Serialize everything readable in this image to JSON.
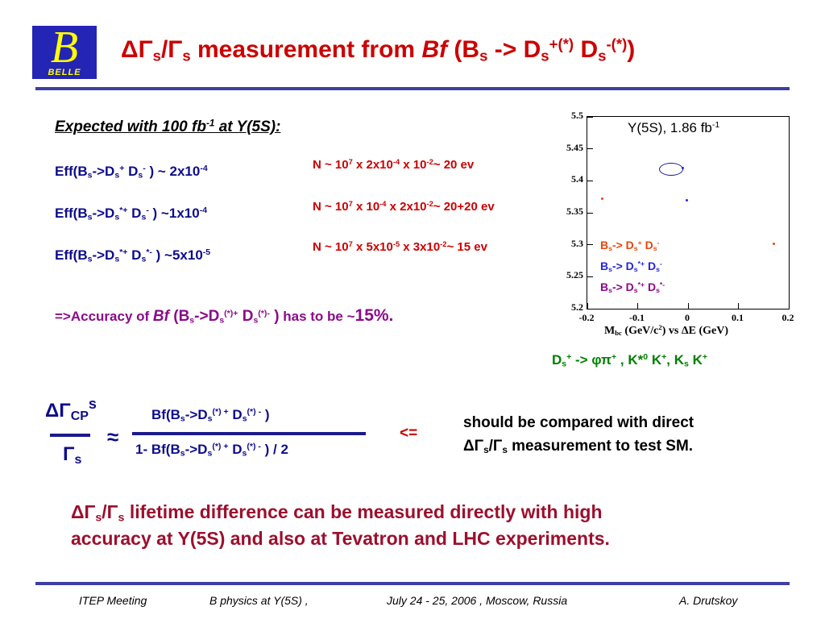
{
  "logo": {
    "text": "BELLE",
    "glyph": "B"
  },
  "title": {
    "a": "ΔΓ",
    "a_sub": "s",
    "slash": "/Γ",
    "b_sub": "s",
    "main": " measurement from ",
    "bf": "Bf",
    "open": " (B",
    "bs": "s",
    "arrow": " -> D",
    "ds1": "s",
    "ds1_sup": "+(*)",
    "d2": " D",
    "ds2": "s",
    "ds2_sup": "-(*)",
    "close": ")"
  },
  "expected": {
    "pre": "Expected with 100 fb",
    "sup": "-1",
    "post": " at Y(5S):"
  },
  "eff": [
    {
      "a": "Eff(B",
      "b": "s",
      "c": "->D",
      "d": "s",
      "e": "+",
      "f": " D",
      "g": "s",
      "h": "-",
      "i": " ) ~ 2x10",
      "j": "-4"
    },
    {
      "a": "Eff(B",
      "b": "s",
      "c": "->D",
      "d": "s",
      "e": "*+",
      "f": " D",
      "g": "s",
      "h": "-",
      "i": " ) ~1x10",
      "j": "-4"
    },
    {
      "a": "Eff(B",
      "b": "s",
      "c": "->D",
      "d": "s",
      "e": "*+",
      "f": " D",
      "g": "s",
      "h": "*-",
      "i": " ) ~5x10",
      "j": "-5"
    }
  ],
  "nlines": [
    {
      "a": "N ~ 10",
      "b": "7",
      "c": " x 2x10",
      "d": "-4",
      "e": " x 10",
      "f": "-2",
      "g": "~ 20 ev"
    },
    {
      "a": "N ~ 10",
      "b": "7",
      "c": " x 10",
      "d": "-4",
      "e": " x 2x10",
      "f": "-2",
      "g": "~ 20+20 ev"
    },
    {
      "a": "N ~ 10",
      "b": "7",
      "c": " x 5x10",
      "d": "-5",
      "e": " x 3x10",
      "f": "-2",
      "g": "~ 15 ev"
    }
  ],
  "accuracy": {
    "a": "=>Accuracy of ",
    "bf": "Bf",
    "b": " (B",
    "bs": "s",
    "c": "->D",
    "ds": "s",
    "dsup": "(*)+",
    "d": " D",
    "ds2": "s",
    "dsup2": "(*)-",
    "e": " )",
    "f": "  has to be ~",
    "pct": "15%."
  },
  "chart_data": {
    "type": "scatter",
    "title": "Y(5S), 1.86 fb",
    "title_sup": "-1",
    "xlabel": "M",
    "xlabel_sub": "bc",
    "xlabel_rest": " (GeV/c",
    "xlabel_sup": "2",
    "xlabel_rest2": ")  vs  ΔE (GeV)",
    "xlim": [
      -0.2,
      0.2
    ],
    "ylim": [
      5.2,
      5.5
    ],
    "xticks": [
      "-0.2",
      "-0.1",
      "0",
      "0.1",
      "0.2"
    ],
    "yticks": [
      "5.5",
      "5.45",
      "5.4",
      "5.35",
      "5.3",
      "5.25",
      "5.2"
    ],
    "series": [
      {
        "name": "Bs-> Ds+ Ds-",
        "color": "#e8460a",
        "points": [
          [
            -0.17,
            5.372
          ],
          [
            0.17,
            5.302
          ]
        ]
      },
      {
        "name": "Bs-> Ds*+ Ds-",
        "color": "#2626d9",
        "points": [
          [
            -0.01,
            5.42
          ],
          [
            -0.003,
            5.37
          ]
        ]
      },
      {
        "name": "Bs-> Ds*+ Ds*-",
        "color": "#8b0a8b",
        "points": []
      }
    ],
    "legend_position": "bottom-right",
    "circled_point": [
      -0.01,
      5.42
    ]
  },
  "legend": [
    {
      "a": "B",
      "b": "s",
      "c": "-> D",
      "d": "s",
      "e": "+",
      "f": " D",
      "g": "s",
      "h": "-"
    },
    {
      "a": "B",
      "b": "s",
      "c": "-> D",
      "d": "s",
      "e": "*+",
      "f": " D",
      "g": "s",
      "h": "-"
    },
    {
      "a": "B",
      "b": "s",
      "c": "-> D",
      "d": "s",
      "e": "*+",
      "f": " D",
      "g": "s",
      "h": "*-"
    }
  ],
  "decay": {
    "a": "D",
    "as": "s",
    "asup": "+",
    "b": " -> φπ",
    "bsup": "+",
    "c": " , K*",
    "csup": "0",
    "d": " K",
    "dsup": "+",
    "e": ", K",
    "es": "s",
    "f": " K",
    "fsup": "+"
  },
  "formula": {
    "num": "ΔΓ",
    "num_sub": "CP",
    "num_sup": "s",
    "den": "Γ",
    "den_sub": "s",
    "approx": "≈",
    "top": {
      "a": "Bf(B",
      "b": "s",
      "c": "->D",
      "d": "s",
      "e": "(*) +",
      "f": " D",
      "g": "s",
      "h": "(*) -",
      "i": " )"
    },
    "bot": {
      "a": "1- Bf(B",
      "b": "s",
      "c": "->D",
      "d": "s",
      "e": "(*) +",
      "f": " D",
      "g": "s",
      "h": "(*) -",
      "i": " ) / 2"
    },
    "arrow": "<="
  },
  "compare": {
    "l1": "should be compared with direct",
    "a": "ΔΓ",
    "as": "s",
    "b": "/Γ",
    "bs": "s",
    "c": " measurement to test SM."
  },
  "conclusion": {
    "a": "ΔΓ",
    "as": "s",
    "b": "/Γ",
    "bs": "s",
    "c": " lifetime difference can be measured directly with high",
    "l2": "accuracy at Y(5S) and also at Tevatron and LHC experiments."
  },
  "footer": {
    "meeting": "ITEP Meeting",
    "topic": "B physics at Y(5S)  ,",
    "date": "July 24 - 25, 2006 , Moscow, Russia",
    "author": "A. Drutskoy"
  }
}
